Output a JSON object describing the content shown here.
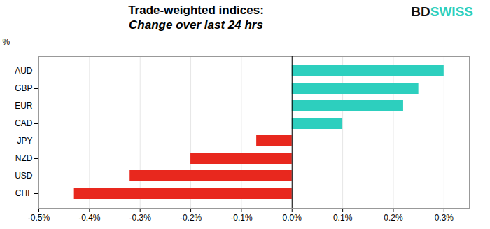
{
  "chart_data": {
    "type": "bar",
    "orientation": "horizontal",
    "title": "Trade-weighted indices:",
    "subtitle": "Change over last 24 hrs",
    "annotations": [
      "BD",
      "SWISS"
    ],
    "y_label": "%",
    "categories": [
      "AUD",
      "GBP",
      "EUR",
      "CAD",
      "JPY",
      "NZD",
      "USD",
      "CHF"
    ],
    "values": [
      0.003,
      0.0025,
      0.0022,
      0.001,
      -0.0007,
      -0.002,
      -0.0032,
      -0.0043
    ],
    "colors": [
      "#2dcfbe",
      "#2dcfbe",
      "#2dcfbe",
      "#2dcfbe",
      "#e8281e",
      "#e8281e",
      "#e8281e",
      "#e8281e"
    ],
    "xlim": [
      -0.005,
      0.0035
    ],
    "xticks": [
      {
        "value": -0.005,
        "label": "-0.5%"
      },
      {
        "value": -0.004,
        "label": "-0.4%"
      },
      {
        "value": -0.003,
        "label": "-0.3%"
      },
      {
        "value": -0.002,
        "label": "-0.2%"
      },
      {
        "value": -0.001,
        "label": "-0.1%"
      },
      {
        "value": 0.0,
        "label": "0.0%"
      },
      {
        "value": 0.001,
        "label": "0.1%"
      },
      {
        "value": 0.002,
        "label": "0.2%"
      },
      {
        "value": 0.003,
        "label": "0.3%"
      }
    ],
    "grid": true
  }
}
